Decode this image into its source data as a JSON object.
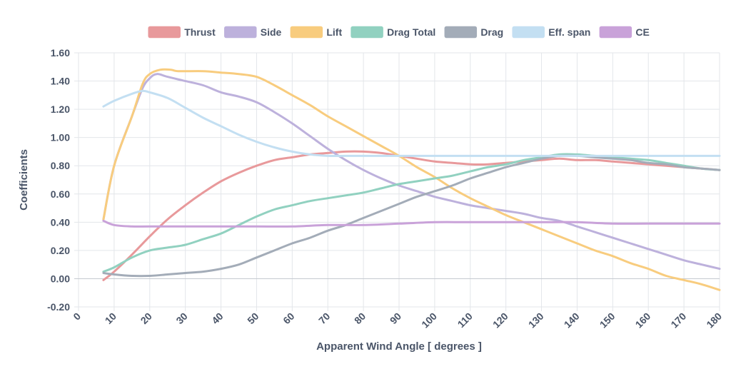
{
  "chart_data": {
    "type": "line",
    "xlabel": "Apparent Wind Angle [ degrees ]",
    "ylabel": "Coefficients",
    "xlim": [
      0,
      180
    ],
    "ylim": [
      -0.2,
      1.6
    ],
    "x_ticks": [
      "0",
      "10",
      "20",
      "30",
      "40",
      "50",
      "60",
      "70",
      "80",
      "90",
      "100",
      "110",
      "120",
      "130",
      "140",
      "150",
      "160",
      "170",
      "180"
    ],
    "y_ticks": [
      "-0.20",
      "0.00",
      "0.20",
      "0.40",
      "0.60",
      "0.80",
      "1.00",
      "1.20",
      "1.40",
      "1.60"
    ],
    "grid": true,
    "legend_position": "top",
    "series": [
      {
        "name": "Thrust",
        "color": "#e8999b",
        "points": [
          [
            7,
            -0.01
          ],
          [
            10,
            0.05
          ],
          [
            15,
            0.17
          ],
          [
            20,
            0.3
          ],
          [
            25,
            0.42
          ],
          [
            30,
            0.52
          ],
          [
            35,
            0.61
          ],
          [
            40,
            0.69
          ],
          [
            45,
            0.75
          ],
          [
            50,
            0.8
          ],
          [
            55,
            0.84
          ],
          [
            60,
            0.86
          ],
          [
            65,
            0.88
          ],
          [
            70,
            0.89
          ],
          [
            75,
            0.9
          ],
          [
            80,
            0.9
          ],
          [
            85,
            0.89
          ],
          [
            90,
            0.87
          ],
          [
            95,
            0.85
          ],
          [
            100,
            0.83
          ],
          [
            105,
            0.82
          ],
          [
            110,
            0.81
          ],
          [
            115,
            0.81
          ],
          [
            120,
            0.82
          ],
          [
            125,
            0.83
          ],
          [
            130,
            0.84
          ],
          [
            135,
            0.85
          ],
          [
            140,
            0.84
          ],
          [
            145,
            0.84
          ],
          [
            150,
            0.83
          ],
          [
            155,
            0.82
          ],
          [
            160,
            0.81
          ],
          [
            165,
            0.8
          ],
          [
            170,
            0.79
          ],
          [
            175,
            0.78
          ],
          [
            180,
            0.77
          ]
        ]
      },
      {
        "name": "Side",
        "color": "#bdb1dc",
        "points": [
          [
            7,
            0.42
          ],
          [
            10,
            0.8
          ],
          [
            15,
            1.15
          ],
          [
            18,
            1.35
          ],
          [
            20,
            1.42
          ],
          [
            22,
            1.45
          ],
          [
            25,
            1.43
          ],
          [
            30,
            1.4
          ],
          [
            35,
            1.37
          ],
          [
            40,
            1.32
          ],
          [
            45,
            1.29
          ],
          [
            50,
            1.25
          ],
          [
            55,
            1.18
          ],
          [
            60,
            1.1
          ],
          [
            65,
            1.01
          ],
          [
            70,
            0.92
          ],
          [
            75,
            0.84
          ],
          [
            80,
            0.77
          ],
          [
            85,
            0.71
          ],
          [
            90,
            0.66
          ],
          [
            95,
            0.62
          ],
          [
            100,
            0.58
          ],
          [
            105,
            0.55
          ],
          [
            110,
            0.52
          ],
          [
            115,
            0.5
          ],
          [
            120,
            0.48
          ],
          [
            125,
            0.46
          ],
          [
            130,
            0.43
          ],
          [
            135,
            0.41
          ],
          [
            140,
            0.37
          ],
          [
            145,
            0.33
          ],
          [
            150,
            0.29
          ],
          [
            155,
            0.25
          ],
          [
            160,
            0.21
          ],
          [
            165,
            0.17
          ],
          [
            170,
            0.13
          ],
          [
            175,
            0.1
          ],
          [
            180,
            0.07
          ]
        ]
      },
      {
        "name": "Lift",
        "color": "#f8cc7e",
        "points": [
          [
            7,
            0.42
          ],
          [
            10,
            0.8
          ],
          [
            15,
            1.15
          ],
          [
            18,
            1.38
          ],
          [
            20,
            1.45
          ],
          [
            23,
            1.48
          ],
          [
            26,
            1.48
          ],
          [
            28,
            1.47
          ],
          [
            35,
            1.47
          ],
          [
            40,
            1.46
          ],
          [
            45,
            1.45
          ],
          [
            50,
            1.43
          ],
          [
            55,
            1.37
          ],
          [
            60,
            1.3
          ],
          [
            65,
            1.23
          ],
          [
            70,
            1.15
          ],
          [
            75,
            1.08
          ],
          [
            80,
            1.01
          ],
          [
            85,
            0.94
          ],
          [
            90,
            0.87
          ],
          [
            95,
            0.79
          ],
          [
            100,
            0.72
          ],
          [
            105,
            0.64
          ],
          [
            110,
            0.57
          ],
          [
            115,
            0.51
          ],
          [
            120,
            0.45
          ],
          [
            125,
            0.4
          ],
          [
            130,
            0.35
          ],
          [
            135,
            0.3
          ],
          [
            140,
            0.25
          ],
          [
            145,
            0.2
          ],
          [
            150,
            0.16
          ],
          [
            155,
            0.11
          ],
          [
            160,
            0.07
          ],
          [
            165,
            0.02
          ],
          [
            170,
            -0.01
          ],
          [
            175,
            -0.04
          ],
          [
            180,
            -0.08
          ]
        ]
      },
      {
        "name": "Drag Total",
        "color": "#91d1c0",
        "points": [
          [
            7,
            0.05
          ],
          [
            10,
            0.08
          ],
          [
            15,
            0.15
          ],
          [
            20,
            0.2
          ],
          [
            25,
            0.22
          ],
          [
            30,
            0.24
          ],
          [
            35,
            0.28
          ],
          [
            40,
            0.32
          ],
          [
            45,
            0.38
          ],
          [
            50,
            0.44
          ],
          [
            55,
            0.49
          ],
          [
            60,
            0.52
          ],
          [
            65,
            0.55
          ],
          [
            70,
            0.57
          ],
          [
            75,
            0.59
          ],
          [
            80,
            0.61
          ],
          [
            85,
            0.64
          ],
          [
            90,
            0.67
          ],
          [
            95,
            0.69
          ],
          [
            100,
            0.71
          ],
          [
            105,
            0.73
          ],
          [
            110,
            0.76
          ],
          [
            115,
            0.79
          ],
          [
            120,
            0.81
          ],
          [
            125,
            0.84
          ],
          [
            130,
            0.86
          ],
          [
            135,
            0.88
          ],
          [
            140,
            0.88
          ],
          [
            145,
            0.87
          ],
          [
            150,
            0.86
          ],
          [
            155,
            0.85
          ],
          [
            160,
            0.84
          ],
          [
            165,
            0.82
          ],
          [
            170,
            0.8
          ],
          [
            175,
            0.78
          ],
          [
            180,
            0.77
          ]
        ]
      },
      {
        "name": "Drag",
        "color": "#a3acb8",
        "points": [
          [
            7,
            0.04
          ],
          [
            10,
            0.03
          ],
          [
            15,
            0.02
          ],
          [
            20,
            0.02
          ],
          [
            25,
            0.03
          ],
          [
            30,
            0.04
          ],
          [
            35,
            0.05
          ],
          [
            40,
            0.07
          ],
          [
            45,
            0.1
          ],
          [
            50,
            0.15
          ],
          [
            55,
            0.2
          ],
          [
            60,
            0.25
          ],
          [
            65,
            0.29
          ],
          [
            70,
            0.34
          ],
          [
            75,
            0.38
          ],
          [
            80,
            0.43
          ],
          [
            85,
            0.48
          ],
          [
            90,
            0.53
          ],
          [
            95,
            0.58
          ],
          [
            100,
            0.62
          ],
          [
            105,
            0.66
          ],
          [
            110,
            0.71
          ],
          [
            115,
            0.75
          ],
          [
            120,
            0.79
          ],
          [
            125,
            0.82
          ],
          [
            130,
            0.85
          ],
          [
            135,
            0.87
          ],
          [
            140,
            0.87
          ],
          [
            145,
            0.86
          ],
          [
            150,
            0.85
          ],
          [
            155,
            0.84
          ],
          [
            160,
            0.82
          ],
          [
            165,
            0.81
          ],
          [
            170,
            0.79
          ],
          [
            175,
            0.78
          ],
          [
            180,
            0.77
          ]
        ]
      },
      {
        "name": "Eff. span",
        "color": "#c3dff2",
        "points": [
          [
            7,
            1.22
          ],
          [
            10,
            1.26
          ],
          [
            15,
            1.31
          ],
          [
            18,
            1.33
          ],
          [
            20,
            1.32
          ],
          [
            25,
            1.28
          ],
          [
            30,
            1.21
          ],
          [
            35,
            1.14
          ],
          [
            40,
            1.08
          ],
          [
            45,
            1.02
          ],
          [
            50,
            0.97
          ],
          [
            55,
            0.93
          ],
          [
            60,
            0.9
          ],
          [
            65,
            0.88
          ],
          [
            70,
            0.87
          ],
          [
            75,
            0.87
          ],
          [
            80,
            0.87
          ],
          [
            90,
            0.87
          ],
          [
            100,
            0.87
          ],
          [
            110,
            0.87
          ],
          [
            120,
            0.87
          ],
          [
            130,
            0.87
          ],
          [
            140,
            0.87
          ],
          [
            150,
            0.87
          ],
          [
            160,
            0.87
          ],
          [
            170,
            0.87
          ],
          [
            180,
            0.87
          ]
        ]
      },
      {
        "name": "CE",
        "color": "#c9a2d9",
        "points": [
          [
            7,
            0.41
          ],
          [
            10,
            0.38
          ],
          [
            15,
            0.37
          ],
          [
            20,
            0.37
          ],
          [
            30,
            0.37
          ],
          [
            40,
            0.37
          ],
          [
            50,
            0.37
          ],
          [
            60,
            0.37
          ],
          [
            70,
            0.38
          ],
          [
            80,
            0.38
          ],
          [
            90,
            0.39
          ],
          [
            100,
            0.4
          ],
          [
            110,
            0.4
          ],
          [
            120,
            0.4
          ],
          [
            130,
            0.4
          ],
          [
            140,
            0.4
          ],
          [
            150,
            0.39
          ],
          [
            160,
            0.39
          ],
          [
            170,
            0.39
          ],
          [
            180,
            0.39
          ]
        ]
      }
    ]
  }
}
